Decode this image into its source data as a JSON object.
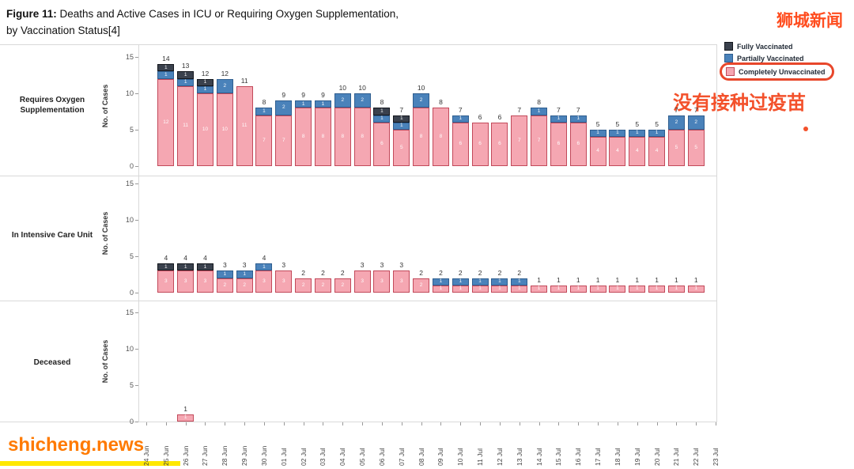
{
  "figure_title": {
    "bold": "Figure 11:",
    "rest": " Deaths and Active Cases in ICU or Requiring Oxygen Supplementation,",
    "line2": "by Vaccination Status[4]"
  },
  "watermarks": {
    "top_right": "狮城新闻",
    "bottom_left": "shicheng.news"
  },
  "annotation": {
    "text": "没有接种过疫苗",
    "color": "#f3512b"
  },
  "legend": {
    "items": [
      {
        "label": "Fully Vaccinated",
        "color": "#3a414d",
        "border": "#14171d",
        "circled": false
      },
      {
        "label": "Partially Vaccinated",
        "color": "#4a82ba",
        "border": "#2f5e8f",
        "circled": false
      },
      {
        "label": "Completely Unvaccinated",
        "color": "#f5a7b2",
        "border": "#c2495a",
        "circled": true
      }
    ]
  },
  "chart_data": {
    "type": "bar",
    "stacked": true,
    "title": "Deaths and Active Cases in ICU or Requiring Oxygen Supplementation, by Vaccination Status",
    "ylabel": "No. of Cases",
    "ylim": [
      0,
      15
    ],
    "yticks": [
      0,
      5,
      10,
      15
    ],
    "legend_position": "top-right",
    "grid": false,
    "x_dates": [
      "24 Jun",
      "25 Jun",
      "26 Jun",
      "27 Jun",
      "28 Jun",
      "29 Jun",
      "30 Jun",
      "01 Jul",
      "02 Jul",
      "03 Jul",
      "04 Jul",
      "05 Jul",
      "06 Jul",
      "07 Jul",
      "08 Jul",
      "09 Jul",
      "10 Jul",
      "11 Jul",
      "12 Jul",
      "13 Jul",
      "14 Jul",
      "15 Jul",
      "16 Jul",
      "17 Jul",
      "18 Jul",
      "19 Jul",
      "20 Jul",
      "21 Jul",
      "22 Jul",
      "23 Jul"
    ],
    "series": [
      {
        "key": "u",
        "name": "Completely Unvaccinated",
        "color": "#f5a7b2",
        "border": "#c2495a"
      },
      {
        "key": "p",
        "name": "Partially Vaccinated",
        "color": "#4a82ba",
        "border": "#2f5e8f"
      },
      {
        "key": "f",
        "name": "Fully Vaccinated",
        "color": "#3a414d",
        "border": "#14171d"
      }
    ],
    "panels": [
      {
        "label": "Requires Oxygen Supplementation",
        "bars": [
          {
            "date": "25 Jun",
            "u": 12,
            "p": 1,
            "f": 1
          },
          {
            "date": "26 Jun",
            "u": 11,
            "p": 1,
            "f": 1
          },
          {
            "date": "27 Jun",
            "u": 10,
            "p": 1,
            "f": 1
          },
          {
            "date": "28 Jun",
            "u": 10,
            "p": 2,
            "f": 0
          },
          {
            "date": "29 Jun",
            "u": 11,
            "p": 0,
            "f": 0
          },
          {
            "date": "30 Jun",
            "u": 7,
            "p": 1,
            "f": 0
          },
          {
            "date": "01 Jul",
            "u": 7,
            "p": 2,
            "f": 0
          },
          {
            "date": "02 Jul",
            "u": 8,
            "p": 1,
            "f": 0
          },
          {
            "date": "03 Jul",
            "u": 8,
            "p": 1,
            "f": 0
          },
          {
            "date": "04 Jul",
            "u": 8,
            "p": 2,
            "f": 0
          },
          {
            "date": "05 Jul",
            "u": 8,
            "p": 2,
            "f": 0
          },
          {
            "date": "06 Jul",
            "u": 6,
            "p": 1,
            "f": 1
          },
          {
            "date": "07 Jul",
            "u": 5,
            "p": 1,
            "f": 1
          },
          {
            "date": "08 Jul",
            "u": 8,
            "p": 2,
            "f": 0
          },
          {
            "date": "09 Jul",
            "u": 8,
            "p": 0,
            "f": 0
          },
          {
            "date": "10 Jul",
            "u": 6,
            "p": 1,
            "f": 0
          },
          {
            "date": "11 Jul",
            "u": 6,
            "p": 0,
            "f": 0
          },
          {
            "date": "12 Jul",
            "u": 6,
            "p": 0,
            "f": 0
          },
          {
            "date": "13 Jul",
            "u": 7,
            "p": 0,
            "f": 0
          },
          {
            "date": "14 Jul",
            "u": 7,
            "p": 1,
            "f": 0
          },
          {
            "date": "15 Jul",
            "u": 6,
            "p": 1,
            "f": 0
          },
          {
            "date": "16 Jul",
            "u": 6,
            "p": 1,
            "f": 0
          },
          {
            "date": "17 Jul",
            "u": 4,
            "p": 1,
            "f": 0
          },
          {
            "date": "18 Jul",
            "u": 4,
            "p": 1,
            "f": 0
          },
          {
            "date": "19 Jul",
            "u": 4,
            "p": 1,
            "f": 0
          },
          {
            "date": "20 Jul",
            "u": 4,
            "p": 1,
            "f": 0
          },
          {
            "date": "21 Jul",
            "u": 5,
            "p": 2,
            "f": 0
          },
          {
            "date": "22 Jul",
            "u": 5,
            "p": 2,
            "f": 0
          }
        ]
      },
      {
        "label": "In Intensive Care Unit",
        "bars": [
          {
            "date": "25 Jun",
            "u": 3,
            "p": 0,
            "f": 1
          },
          {
            "date": "26 Jun",
            "u": 3,
            "p": 0,
            "f": 1
          },
          {
            "date": "27 Jun",
            "u": 3,
            "p": 0,
            "f": 1
          },
          {
            "date": "28 Jun",
            "u": 2,
            "p": 1,
            "f": 0
          },
          {
            "date": "29 Jun",
            "u": 2,
            "p": 1,
            "f": 0
          },
          {
            "date": "30 Jun",
            "u": 3,
            "p": 1,
            "f": 0
          },
          {
            "date": "01 Jul",
            "u": 3,
            "p": 0,
            "f": 0
          },
          {
            "date": "02 Jul",
            "u": 2,
            "p": 0,
            "f": 0
          },
          {
            "date": "03 Jul",
            "u": 2,
            "p": 0,
            "f": 0
          },
          {
            "date": "04 Jul",
            "u": 2,
            "p": 0,
            "f": 0
          },
          {
            "date": "05 Jul",
            "u": 3,
            "p": 0,
            "f": 0
          },
          {
            "date": "06 Jul",
            "u": 3,
            "p": 0,
            "f": 0
          },
          {
            "date": "07 Jul",
            "u": 3,
            "p": 0,
            "f": 0
          },
          {
            "date": "08 Jul",
            "u": 2,
            "p": 0,
            "f": 0
          },
          {
            "date": "09 Jul",
            "u": 1,
            "p": 1,
            "f": 0
          },
          {
            "date": "10 Jul",
            "u": 1,
            "p": 1,
            "f": 0
          },
          {
            "date": "11 Jul",
            "u": 1,
            "p": 1,
            "f": 0
          },
          {
            "date": "12 Jul",
            "u": 1,
            "p": 1,
            "f": 0
          },
          {
            "date": "13 Jul",
            "u": 1,
            "p": 1,
            "f": 0
          },
          {
            "date": "14 Jul",
            "u": 1,
            "p": 0,
            "f": 0
          },
          {
            "date": "15 Jul",
            "u": 1,
            "p": 0,
            "f": 0
          },
          {
            "date": "16 Jul",
            "u": 1,
            "p": 0,
            "f": 0
          },
          {
            "date": "17 Jul",
            "u": 1,
            "p": 0,
            "f": 0
          },
          {
            "date": "18 Jul",
            "u": 1,
            "p": 0,
            "f": 0
          },
          {
            "date": "19 Jul",
            "u": 1,
            "p": 0,
            "f": 0
          },
          {
            "date": "20 Jul",
            "u": 1,
            "p": 0,
            "f": 0
          },
          {
            "date": "21 Jul",
            "u": 1,
            "p": 0,
            "f": 0
          },
          {
            "date": "22 Jul",
            "u": 1,
            "p": 0,
            "f": 0
          }
        ]
      },
      {
        "label": "Deceased",
        "bars": [
          {
            "date": "26 Jun",
            "u": 1,
            "p": 0,
            "f": 0
          }
        ]
      }
    ]
  }
}
